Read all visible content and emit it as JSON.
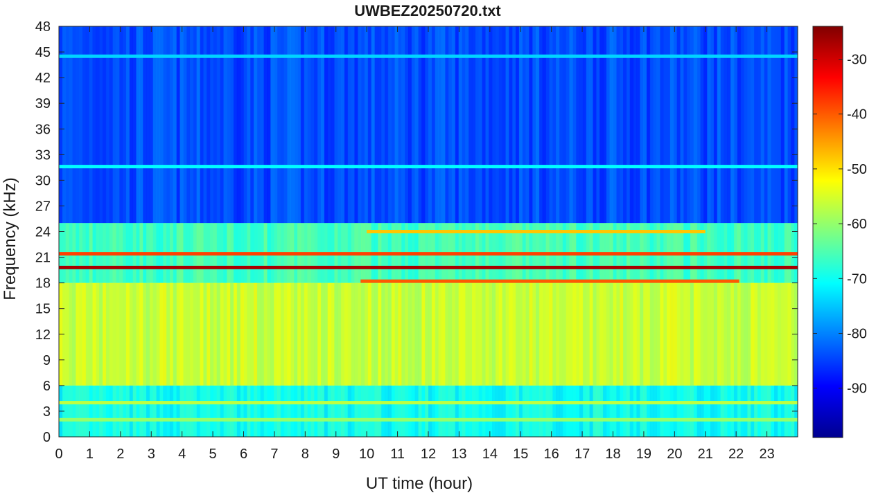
{
  "chart_data": {
    "type": "heatmap",
    "title": "UWBEZ20250720.txt",
    "xlabel": "UT time (hour)",
    "ylabel": "Frequency (kHz)",
    "xlim": [
      0,
      24
    ],
    "ylim": [
      0,
      48
    ],
    "xticks": [
      0,
      1,
      2,
      3,
      4,
      5,
      6,
      7,
      8,
      9,
      10,
      11,
      12,
      13,
      14,
      15,
      16,
      17,
      18,
      19,
      20,
      21,
      22,
      23
    ],
    "yticks": [
      0,
      3,
      6,
      9,
      12,
      15,
      18,
      21,
      24,
      27,
      30,
      33,
      36,
      39,
      42,
      45,
      48
    ],
    "colormap": "jet",
    "colorbar": {
      "range": [
        -99,
        -24
      ],
      "ticks": [
        -30,
        -40,
        -50,
        -60,
        -70,
        -80,
        -90
      ]
    },
    "background_dB": [
      {
        "freq_range_kHz": [
          0,
          6
        ],
        "level_dB": -70
      },
      {
        "freq_range_kHz": [
          6,
          18
        ],
        "level_dB": -56
      },
      {
        "freq_range_kHz": [
          18,
          25
        ],
        "level_dB": -66
      },
      {
        "freq_range_kHz": [
          25,
          48
        ],
        "level_dB": -84
      }
    ],
    "strong_lines": [
      {
        "freq_kHz": 19.8,
        "level_dB": -27,
        "time_range_h": [
          0,
          24
        ]
      },
      {
        "freq_kHz": 21.4,
        "level_dB": -38,
        "time_range_h": [
          0,
          24
        ]
      },
      {
        "freq_kHz": 18.2,
        "level_dB": -40,
        "time_range_h": [
          9.8,
          22.1
        ]
      },
      {
        "freq_kHz": 24.0,
        "level_dB": -48,
        "time_range_h": [
          10,
          21
        ]
      },
      {
        "freq_kHz": 4.0,
        "level_dB": -57,
        "time_range_h": [
          0,
          24
        ]
      },
      {
        "freq_kHz": 2.0,
        "level_dB": -60,
        "time_range_h": [
          0,
          24
        ]
      },
      {
        "freq_kHz": 31.6,
        "level_dB": -71,
        "time_range_h": [
          0,
          24
        ]
      },
      {
        "freq_kHz": 44.5,
        "level_dB": -74,
        "time_range_h": [
          0,
          24
        ]
      }
    ],
    "grid": false
  }
}
